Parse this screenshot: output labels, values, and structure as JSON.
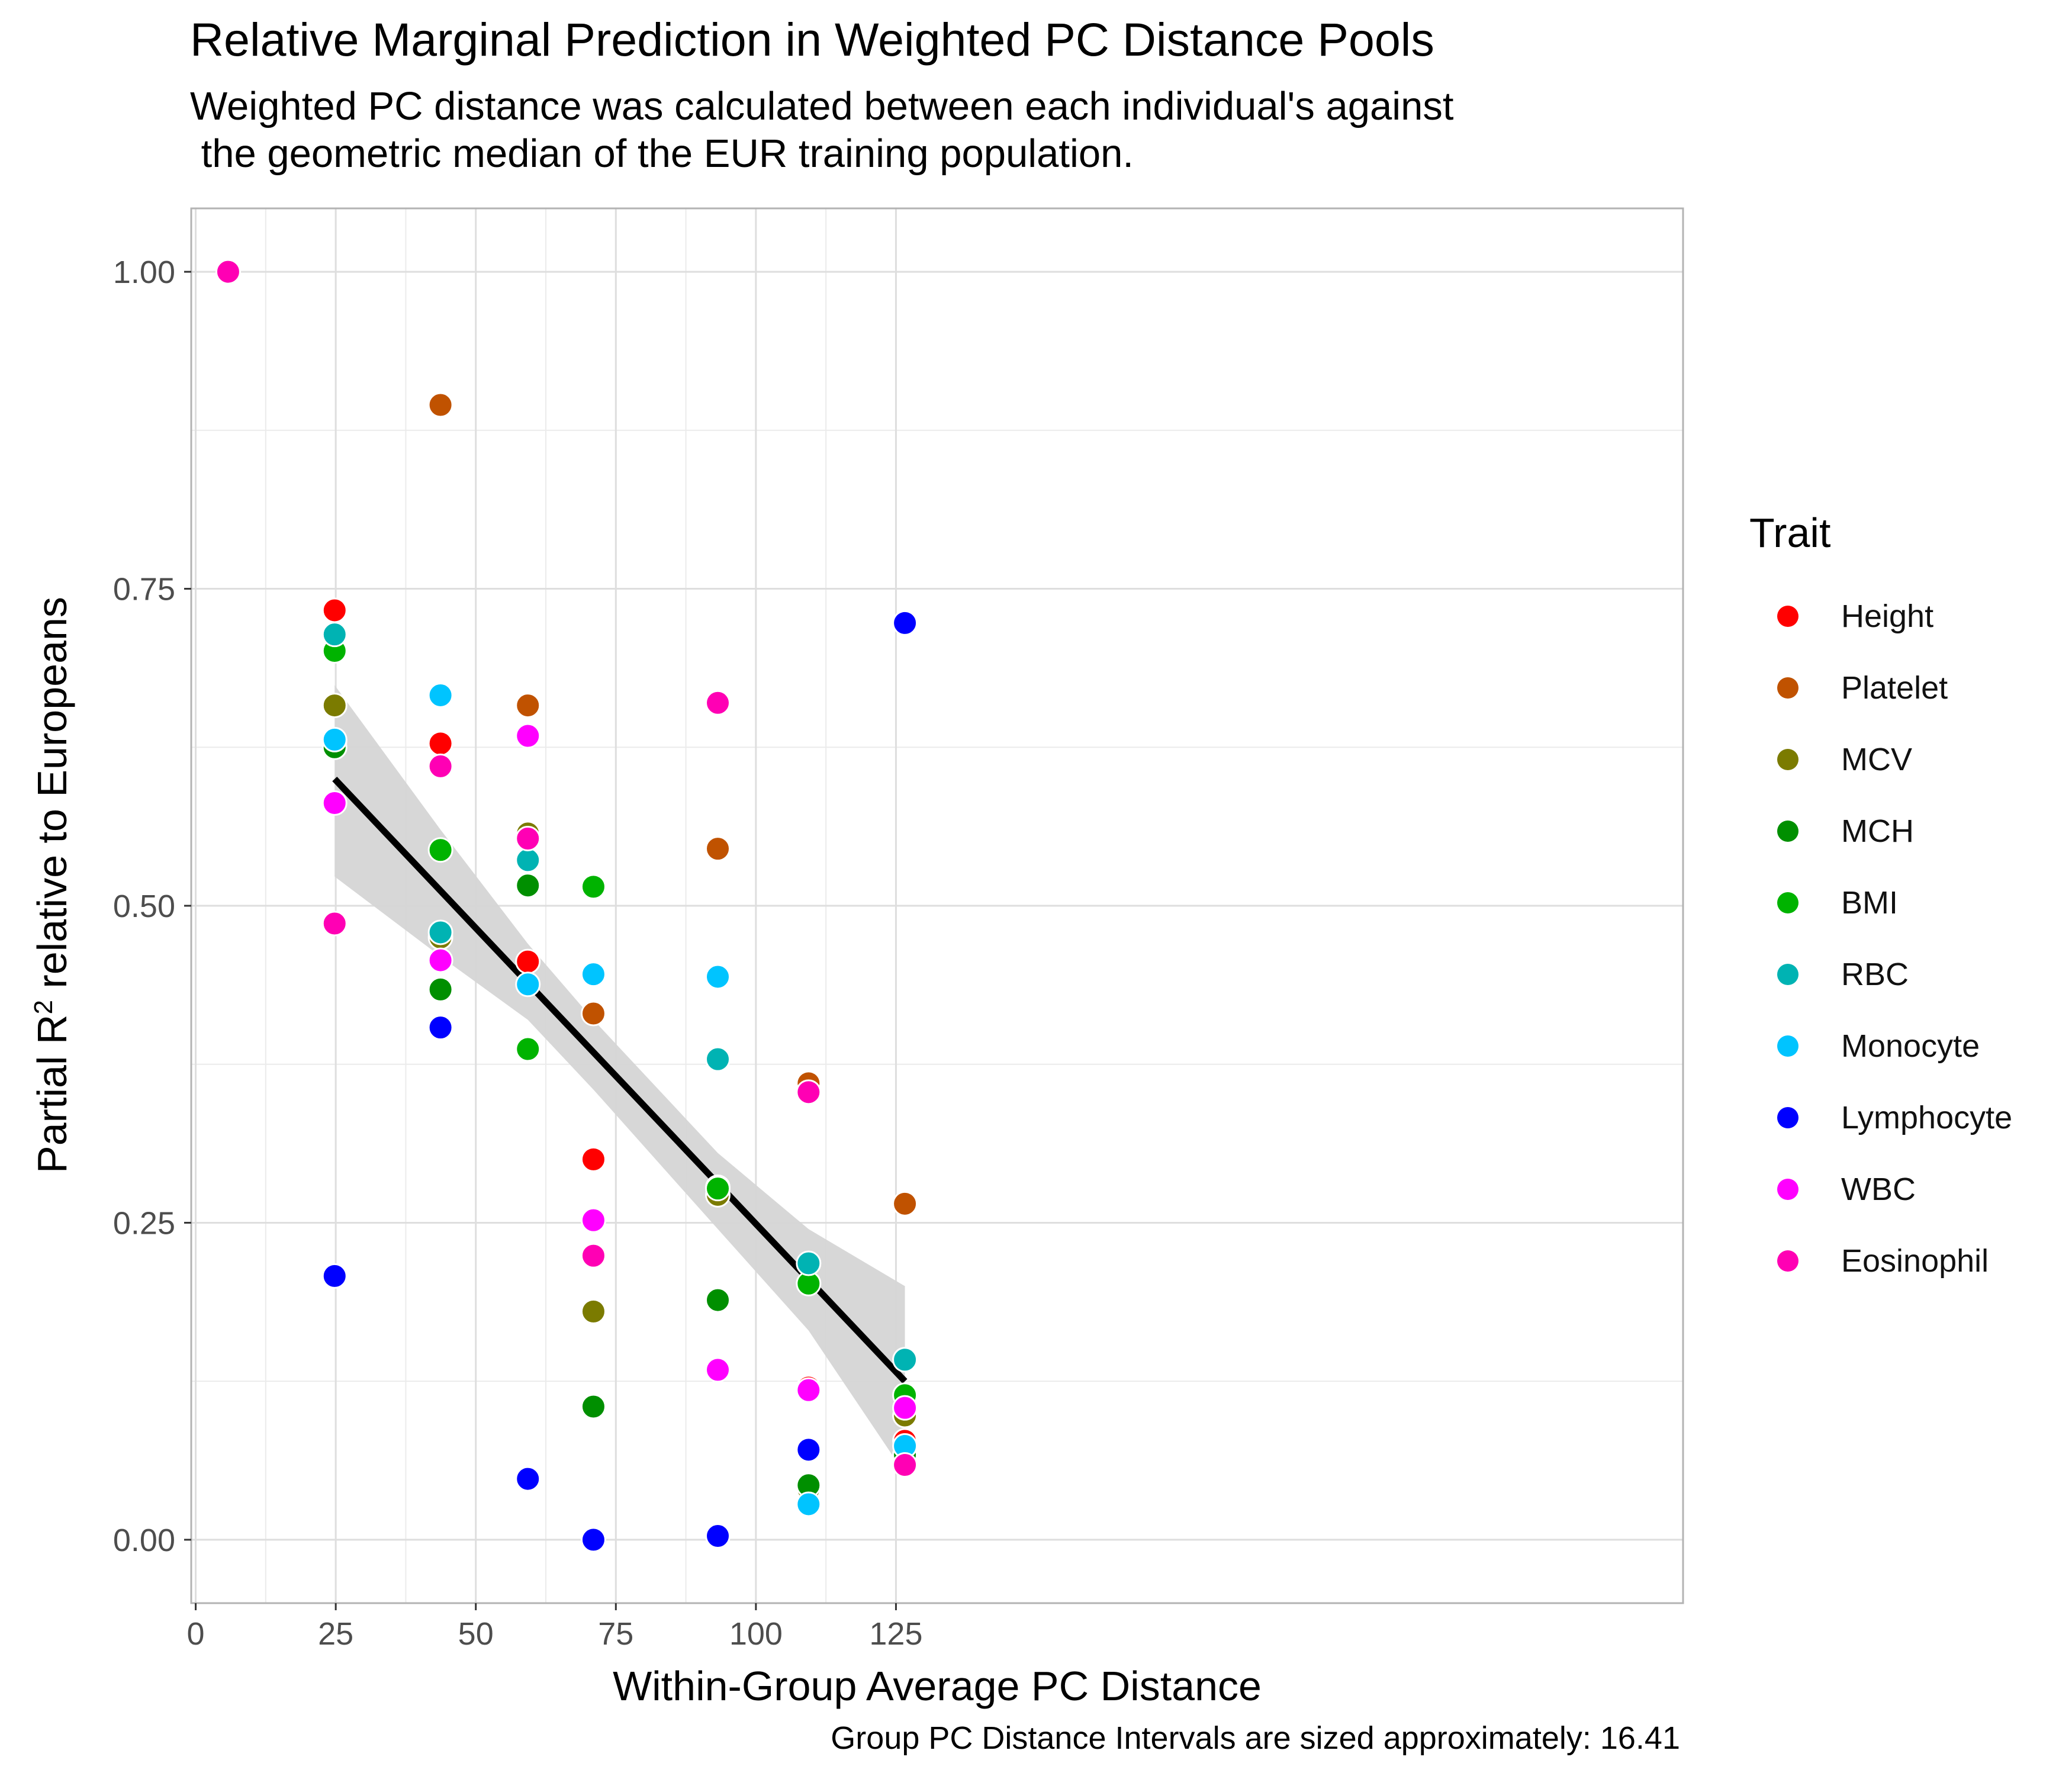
{
  "chart_data": {
    "type": "scatter",
    "title": "Relative Marginal Prediction in Weighted PC Distance Pools",
    "subtitle": "Weighted PC distance was calculated between each individual's against\n the geometric median of the EUR training population.",
    "xlabel": "Within-Group Average PC Distance",
    "ylabel": "Partial R² relative to Europeans",
    "xlim": [
      -0.8,
      265.5
    ],
    "ylim": [
      -0.05,
      1.05
    ],
    "x_ticks": [
      {
        "value": 0,
        "label": "0"
      },
      {
        "value": 25,
        "label": "25"
      },
      {
        "value": 50,
        "label": "50"
      },
      {
        "value": 75,
        "label": "75"
      },
      {
        "value": 100,
        "label": "100"
      },
      {
        "value": 125,
        "label": "125"
      }
    ],
    "y_ticks": [
      {
        "value": 0,
        "label": "0.00"
      },
      {
        "value": 0.25,
        "label": "0.25"
      },
      {
        "value": 0.5,
        "label": "0.50"
      },
      {
        "value": 0.75,
        "label": "0.75"
      },
      {
        "value": 1.0,
        "label": "1.00"
      }
    ],
    "grid": true,
    "legend_title": "Trait",
    "legend_position": "right",
    "series": [
      {
        "name": "Height",
        "color": "#ff0000",
        "points": [
          [
            5.8,
            1.0
          ],
          [
            24.8,
            0.733
          ],
          [
            43.7,
            0.628
          ],
          [
            59.3,
            0.456
          ],
          [
            71,
            0.3
          ],
          [
            93.2,
            0.278
          ],
          [
            109.4,
            0.12
          ],
          [
            126.6,
            0.078
          ]
        ]
      },
      {
        "name": "Platelet",
        "color": "#c05200",
        "points": [
          [
            5.8,
            1.0
          ],
          [
            24.8,
            0.63
          ],
          [
            43.7,
            0.895
          ],
          [
            59.3,
            0.658
          ],
          [
            71,
            0.415
          ],
          [
            93.2,
            0.545
          ],
          [
            109.4,
            0.36
          ],
          [
            126.6,
            0.265
          ]
        ]
      },
      {
        "name": "MCV",
        "color": "#7b7b00",
        "points": [
          [
            5.8,
            1.0
          ],
          [
            24.8,
            0.658
          ],
          [
            43.7,
            0.475
          ],
          [
            59.3,
            0.557
          ],
          [
            71,
            0.18
          ],
          [
            93.2,
            0.272
          ],
          [
            109.4,
            0.04
          ],
          [
            126.6,
            0.098
          ]
        ]
      },
      {
        "name": "MCH",
        "color": "#008f00",
        "points": [
          [
            5.8,
            1.0
          ],
          [
            24.8,
            0.625
          ],
          [
            43.7,
            0.434
          ],
          [
            59.3,
            0.516
          ],
          [
            71,
            0.105
          ],
          [
            93.2,
            0.189
          ],
          [
            109.4,
            0.043
          ],
          [
            126.6,
            0.067
          ]
        ]
      },
      {
        "name": "BMI",
        "color": "#00b300",
        "points": [
          [
            5.8,
            1.0
          ],
          [
            24.8,
            0.701
          ],
          [
            43.7,
            0.544
          ],
          [
            59.3,
            0.387
          ],
          [
            71,
            0.515
          ],
          [
            93.2,
            0.277
          ],
          [
            109.4,
            0.202
          ],
          [
            126.6,
            0.114
          ]
        ]
      },
      {
        "name": "RBC",
        "color": "#00b3b3",
        "points": [
          [
            5.8,
            1.0
          ],
          [
            24.8,
            0.714
          ],
          [
            43.7,
            0.479
          ],
          [
            59.3,
            0.536
          ],
          [
            71,
            0.224
          ],
          [
            93.2,
            0.379
          ],
          [
            109.4,
            0.218
          ],
          [
            126.6,
            0.142
          ]
        ]
      },
      {
        "name": "Monocyte",
        "color": "#00c4ff",
        "points": [
          [
            5.8,
            1.0
          ],
          [
            24.8,
            0.631
          ],
          [
            43.7,
            0.666
          ],
          [
            59.3,
            0.438
          ],
          [
            71,
            0.446
          ],
          [
            93.2,
            0.444
          ],
          [
            109.4,
            0.028
          ],
          [
            126.6,
            0.074
          ]
        ]
      },
      {
        "name": "Lymphocyte",
        "color": "#0000ff",
        "points": [
          [
            5.8,
            1.0
          ],
          [
            24.8,
            0.208
          ],
          [
            43.7,
            0.404
          ],
          [
            59.3,
            0.048
          ],
          [
            71,
            0.0
          ],
          [
            93.2,
            0.003
          ],
          [
            109.4,
            0.071
          ],
          [
            126.6,
            0.723
          ]
        ]
      },
      {
        "name": "WBC",
        "color": "#ff00ff",
        "points": [
          [
            5.8,
            1.0
          ],
          [
            24.8,
            0.581
          ],
          [
            43.7,
            0.457
          ],
          [
            59.3,
            0.634
          ],
          [
            71,
            0.252
          ],
          [
            93.2,
            0.134
          ],
          [
            109.4,
            0.118
          ],
          [
            126.6,
            0.104
          ]
        ]
      },
      {
        "name": "Eosinophil",
        "color": "#ff00b4",
        "points": [
          [
            5.8,
            1.0
          ],
          [
            24.8,
            0.486
          ],
          [
            43.7,
            0.61
          ],
          [
            59.3,
            0.553
          ],
          [
            71,
            0.224
          ],
          [
            93.2,
            0.66
          ],
          [
            109.4,
            0.353
          ],
          [
            126.6,
            0.059
          ]
        ]
      }
    ],
    "trend_line": {
      "method": "linear",
      "color": "#000000",
      "points": [
        [
          24.8,
          0.6
        ],
        [
          126.6,
          0.125
        ]
      ]
    },
    "confidence_band": {
      "color": "#d5d5d5",
      "points": [
        [
          24.8,
          0.674,
          0.523
        ],
        [
          43.7,
          0.56,
          0.46
        ],
        [
          59.3,
          0.47,
          0.41
        ],
        [
          71,
          0.41,
          0.355
        ],
        [
          93.2,
          0.305,
          0.245
        ],
        [
          109.4,
          0.245,
          0.165
        ],
        [
          126.6,
          0.2,
          0.052
        ]
      ]
    },
    "caption": "Group PC Distance Intervals are sized approximately: 16.41"
  }
}
